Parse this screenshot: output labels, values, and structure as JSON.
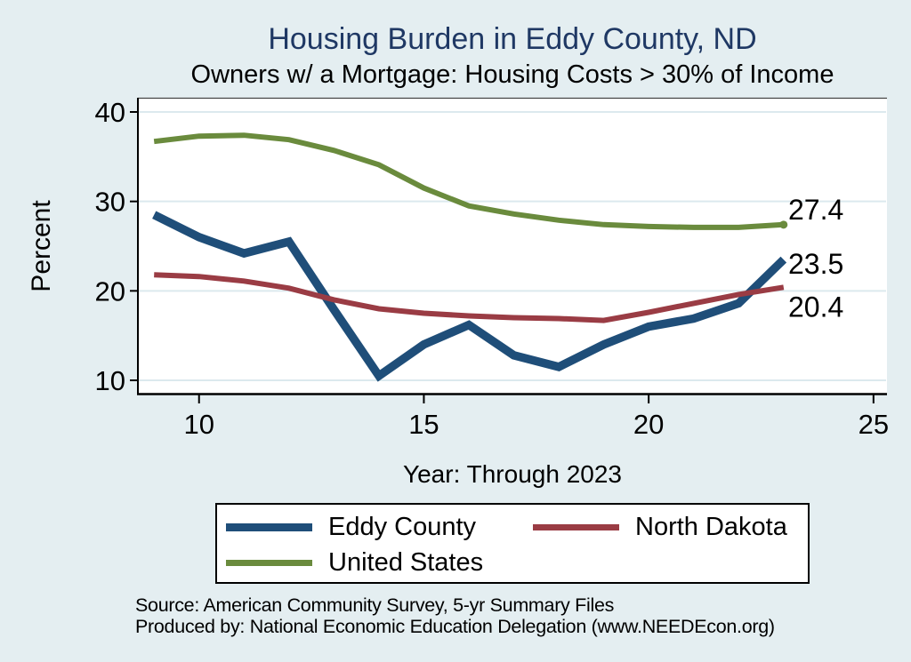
{
  "title": "Housing Burden in Eddy County, ND",
  "subtitle": "Owners w/ a Mortgage: Housing Costs > 30% of Income",
  "axes": {
    "y_title": "Percent",
    "x_title": "Year: Through 2023",
    "y_ticks": [
      {
        "value": 10,
        "label": "10"
      },
      {
        "value": 20,
        "label": "20"
      },
      {
        "value": 30,
        "label": "30"
      },
      {
        "value": 40,
        "label": "40"
      }
    ],
    "x_ticks": [
      {
        "value": 2010,
        "label": "10"
      },
      {
        "value": 2015,
        "label": "15"
      },
      {
        "value": 2020,
        "label": "20"
      },
      {
        "value": 2025,
        "label": "25"
      }
    ]
  },
  "chart_data": {
    "type": "line",
    "x": [
      2009,
      2010,
      2011,
      2012,
      2013,
      2014,
      2015,
      2016,
      2017,
      2018,
      2019,
      2020,
      2021,
      2022,
      2023
    ],
    "series": [
      {
        "name": "Eddy County",
        "color": "#1f4e79",
        "width": 9.5,
        "values": [
          28.5,
          26.0,
          24.2,
          25.5,
          17.9,
          10.5,
          14.0,
          16.2,
          12.8,
          11.5,
          14.0,
          16.0,
          16.9,
          18.6,
          23.5
        ],
        "end_label": "23.5",
        "end_marker": false
      },
      {
        "name": "North Dakota",
        "color": "#9a3c44",
        "width": 6,
        "values": [
          21.8,
          21.6,
          21.1,
          20.3,
          19.0,
          18.0,
          17.5,
          17.2,
          17.0,
          16.9,
          16.7,
          17.6,
          18.6,
          19.6,
          20.4
        ],
        "end_label": "20.4",
        "end_marker": false
      },
      {
        "name": "United States",
        "color": "#6a8b3d",
        "width": 6,
        "values": [
          36.7,
          37.3,
          37.4,
          36.9,
          35.7,
          34.1,
          31.5,
          29.5,
          28.6,
          27.9,
          27.4,
          27.2,
          27.1,
          27.1,
          27.4
        ],
        "end_label": "27.4",
        "end_marker": true
      }
    ],
    "title": "Housing Burden in Eddy County, ND",
    "subtitle": "Owners w/ a Mortgage: Housing Costs > 30% of Income",
    "xlabel": "Year: Through 2023",
    "ylabel": "Percent",
    "xlim": [
      2008.64,
      2025.3
    ],
    "ylim": [
      8.51,
      41.59
    ],
    "grid": "horizontal",
    "legend_position": "bottom"
  },
  "colors": {
    "background": "#e4eef1",
    "plot_background": "#ffffff",
    "gridline": "#dce9ee",
    "axis": "#000000",
    "title": "#1f3864"
  },
  "source": {
    "line1": "Source: American Community Survey, 5-yr Summary Files",
    "line2": "Produced by: National Economic Education Delegation (www.NEEDEcon.org)"
  }
}
